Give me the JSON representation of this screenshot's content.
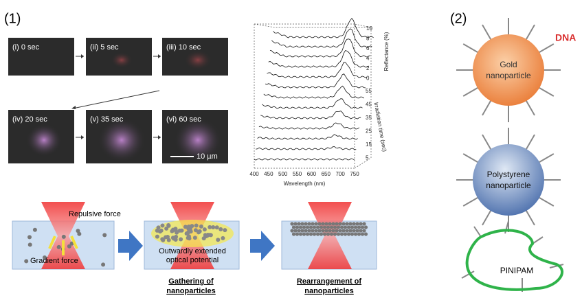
{
  "panel1": {
    "label": "(1)",
    "images": [
      "(i) 0 sec",
      "(ii) 5 sec",
      "(iii) 10 sec",
      "(iv) 20 sec",
      "(v) 35 sec",
      "(vi) 60 sec"
    ],
    "scale_bar": "10 µm",
    "plot": {
      "reflectance_ticks": [
        "10",
        "8",
        "6",
        "4",
        "2",
        "0"
      ],
      "reflectance_label": "Reflectance (%)",
      "time_ticks": [
        "55",
        "45",
        "35",
        "25",
        "15",
        "5"
      ],
      "time_label": "Irradiation time (sec)",
      "wavelength_ticks": [
        "400",
        "450",
        "500",
        "550",
        "600",
        "650",
        "700",
        "750"
      ],
      "wavelength_label": "Wavelength (nm)"
    },
    "schematic": {
      "repulsive": "Repulsive force",
      "gradient": "Gradient force",
      "potential": [
        "Outwardly extended",
        "optical potential"
      ],
      "captions": [
        [
          "Gathering of",
          "nanoparticles"
        ],
        [
          "Rearrangement of",
          "nanoparticles"
        ]
      ]
    }
  },
  "panel2": {
    "label": "(2)",
    "dna": "DNA",
    "gold": [
      "Gold",
      "nanoparticle"
    ],
    "polystyrene": [
      "Polystyrene",
      "nanoparticle"
    ],
    "polymer": "PINIPAM"
  }
}
